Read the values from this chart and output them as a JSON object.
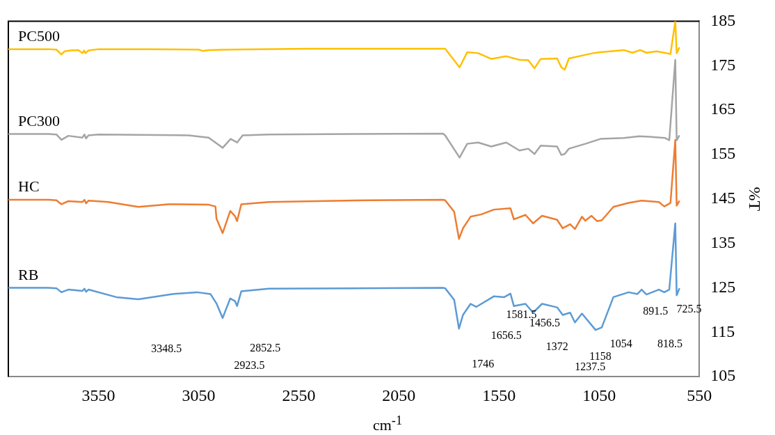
{
  "chart_data": {
    "type": "line",
    "xlabel": "cm$^{-1}$",
    "ylabel": "%T",
    "xlim": [
      4000,
      550
    ],
    "xticks": [
      3550,
      3050,
      2550,
      2050,
      1550,
      1050,
      550
    ],
    "ylim": [
      105,
      185
    ],
    "yticks": [
      105,
      115,
      125,
      135,
      145,
      155,
      165,
      175,
      185
    ],
    "grid": false,
    "legend": false,
    "marker": "none",
    "line_style": "solid",
    "series": [
      {
        "name": "PC500",
        "color": "#ffc000",
        "x": [
          4000,
          3800,
          3760,
          3735,
          3720,
          3690,
          3650,
          3630,
          3622,
          3615,
          3600,
          3550,
          3300,
          3050,
          3030,
          3000,
          2900,
          2500,
          2000,
          1819,
          1747,
          1709,
          1654,
          1589,
          1514,
          1448,
          1404,
          1373,
          1342,
          1260,
          1239,
          1222,
          1201,
          1081,
          1044,
          927,
          883,
          845,
          814,
          763,
          725,
          694,
          670,
          663,
          649
        ],
        "values": [
          178.7,
          178.7,
          178.6,
          177.5,
          178.2,
          178.4,
          178.5,
          177.8,
          178.4,
          177.8,
          178.4,
          178.7,
          178.7,
          178.6,
          178.3,
          178.5,
          178.6,
          178.8,
          178.8,
          178.8,
          174.6,
          178.0,
          177.8,
          176.5,
          177.1,
          176.3,
          176.2,
          174.4,
          176.5,
          176.6,
          174.6,
          174.1,
          176.6,
          177.8,
          178.0,
          178.5,
          177.9,
          178.5,
          177.9,
          178.2,
          177.9,
          177.6,
          185,
          177.8,
          179.1
        ]
      },
      {
        "name": "PC300",
        "color": "#a5a5a5",
        "x": [
          4000,
          3800,
          3760,
          3735,
          3700,
          3630,
          3620,
          3612,
          3600,
          3550,
          3100,
          3000,
          2960,
          2930,
          2890,
          2858,
          2830,
          2700,
          1830,
          1819,
          1747,
          1709,
          1654,
          1589,
          1514,
          1448,
          1404,
          1373,
          1342,
          1260,
          1239,
          1222,
          1201,
          1119,
          1044,
          927,
          850,
          800,
          720,
          700,
          670,
          663,
          649
        ],
        "values": [
          159.6,
          159.6,
          159.5,
          158.3,
          159.2,
          158.8,
          159.5,
          158.6,
          159.3,
          159.5,
          159.3,
          158.8,
          157.5,
          156.5,
          158.5,
          157.7,
          159.3,
          159.5,
          159.7,
          159.3,
          154.3,
          157.4,
          157.7,
          156.8,
          157.7,
          155.9,
          156.3,
          155.1,
          157.0,
          156.8,
          154.9,
          155.1,
          156.3,
          157.4,
          158.5,
          158.7,
          159.1,
          159.0,
          158.7,
          158.2,
          176.3,
          158.2,
          159.3
        ]
      },
      {
        "name": "HC",
        "color": "#ed7d31",
        "x": [
          4000,
          3800,
          3760,
          3735,
          3700,
          3630,
          3620,
          3612,
          3600,
          3500,
          3351,
          3200,
          3000,
          2966,
          2961,
          2930,
          2892,
          2868,
          2858,
          2837,
          2700,
          2200,
          1830,
          1819,
          1774,
          1750,
          1730,
          1692,
          1640,
          1575,
          1493,
          1476,
          1418,
          1380,
          1335,
          1260,
          1232,
          1195,
          1171,
          1136,
          1119,
          1088,
          1061,
          1037,
          979,
          903,
          838,
          752,
          725,
          694,
          670,
          663,
          649
        ],
        "values": [
          144.8,
          144.8,
          144.7,
          143.8,
          144.5,
          144.3,
          144.8,
          144.0,
          144.6,
          144.3,
          143.2,
          143.8,
          143.7,
          143.3,
          140.6,
          137.3,
          142.3,
          141.1,
          140.0,
          143.8,
          144.3,
          144.7,
          144.8,
          144.7,
          142.1,
          136.0,
          138.4,
          141.0,
          141.5,
          142.6,
          142.9,
          140.4,
          141.4,
          139.5,
          141.2,
          140.3,
          138.4,
          139.3,
          138.2,
          141.0,
          140.1,
          141.2,
          140.0,
          140.2,
          143.2,
          144.1,
          144.6,
          144.3,
          143.3,
          144.1,
          158.3,
          143.5,
          144.6
        ]
      },
      {
        "name": "RB",
        "color": "#5b9bd5",
        "x": [
          4000,
          3800,
          3760,
          3735,
          3700,
          3630,
          3620,
          3612,
          3600,
          3461,
          3351,
          3180,
          3058,
          2991,
          2961,
          2930,
          2892,
          2868,
          2858,
          2837,
          2700,
          1830,
          1819,
          1774,
          1750,
          1730,
          1692,
          1664,
          1575,
          1524,
          1493,
          1476,
          1418,
          1380,
          1335,
          1260,
          1232,
          1195,
          1171,
          1136,
          1088,
          1068,
          1037,
          979,
          903,
          859,
          838,
          814,
          752,
          725,
          700,
          670,
          663,
          649
        ],
        "values": [
          125.0,
          125.0,
          124.9,
          124.0,
          124.6,
          124.3,
          124.8,
          124.1,
          124.6,
          122.9,
          122.4,
          123.6,
          124.0,
          123.6,
          121.5,
          118.2,
          122.6,
          122.0,
          120.9,
          124.2,
          124.8,
          125.0,
          124.9,
          122.3,
          115.8,
          118.9,
          121.4,
          120.7,
          123.1,
          122.9,
          123.7,
          120.9,
          121.4,
          119.4,
          121.4,
          120.6,
          118.9,
          119.4,
          117.2,
          119.2,
          116.6,
          115.5,
          116.1,
          122.9,
          124.0,
          123.6,
          124.6,
          123.5,
          124.6,
          124.0,
          124.6,
          139.5,
          123.3,
          124.9
        ]
      }
    ],
    "annotations": [
      "3348.5",
      "2852.5",
      "2923.5",
      "1746",
      "1656.5",
      "1581.5",
      "1456.5",
      "1372",
      "1158",
      "1237.5",
      "1054",
      "891.5",
      "725.5",
      "818.5"
    ]
  }
}
